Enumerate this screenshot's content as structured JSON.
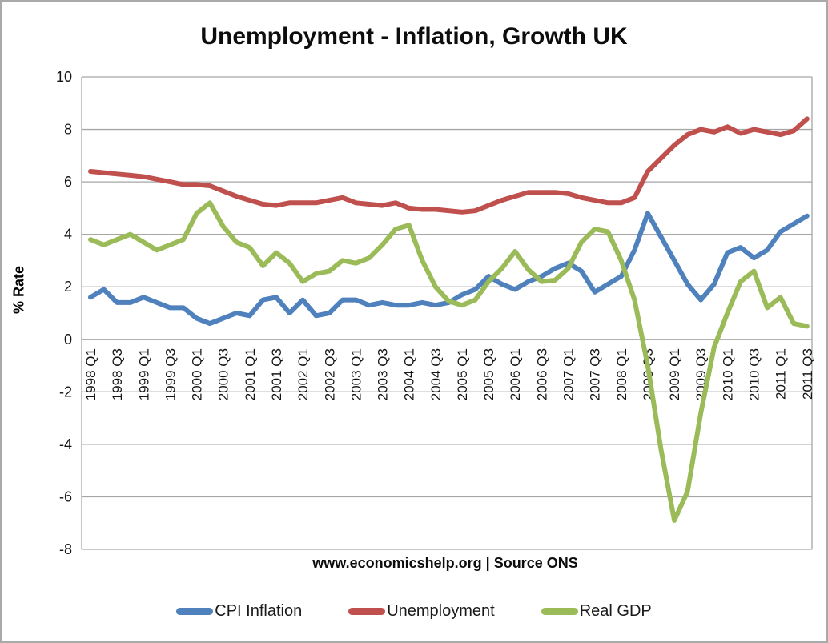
{
  "title": "Unemployment - Inflation, Growth UK",
  "source_text": "www.economicshelp.org | Source ONS",
  "y_axis": {
    "label": "% Rate",
    "ticks": [
      10,
      8,
      6,
      4,
      2,
      0,
      -2,
      -4,
      -6,
      -8
    ]
  },
  "x_axis": {
    "visible_labels": [
      "1998 Q1",
      "1998 Q3",
      "1999 Q1",
      "1999 Q3",
      "2000 Q1",
      "2000 Q3",
      "2001 Q1",
      "2001 Q3",
      "2002 Q1",
      "2002 Q3",
      "2003 Q1",
      "2003 Q3",
      "2004 Q1",
      "2004 Q3",
      "2005 Q1",
      "2005 Q3",
      "2006 Q1",
      "2006 Q3",
      "2007 Q1",
      "2007 Q3",
      "2008 Q1",
      "2008 Q3",
      "2009 Q1",
      "2009 Q3",
      "2010 Q1",
      "2010 Q3",
      "2011 Q1",
      "2011 Q3"
    ]
  },
  "legend": [
    {
      "label": "CPI Inflation",
      "color": "#4F81BD"
    },
    {
      "label": "Unemployment",
      "color": "#C0504D"
    },
    {
      "label": "Real GDP",
      "color": "#9BBB59"
    }
  ],
  "colors": {
    "gridline": "#a6a6a6",
    "text": "#151515",
    "background": "#ffffff",
    "border": "#a9a9a9"
  },
  "chart_data": {
    "type": "line",
    "title": "Unemployment - Inflation, Growth UK",
    "ylabel": "% Rate",
    "ylim": [
      -8,
      10
    ],
    "y_tick_step": 2,
    "grid": true,
    "legend_position": "bottom",
    "x": [
      "1998 Q1",
      "1998 Q2",
      "1998 Q3",
      "1998 Q4",
      "1999 Q1",
      "1999 Q2",
      "1999 Q3",
      "1999 Q4",
      "2000 Q1",
      "2000 Q2",
      "2000 Q3",
      "2000 Q4",
      "2001 Q1",
      "2001 Q2",
      "2001 Q3",
      "2001 Q4",
      "2002 Q1",
      "2002 Q2",
      "2002 Q3",
      "2002 Q4",
      "2003 Q1",
      "2003 Q2",
      "2003 Q3",
      "2003 Q4",
      "2004 Q1",
      "2004 Q2",
      "2004 Q3",
      "2004 Q4",
      "2005 Q1",
      "2005 Q2",
      "2005 Q3",
      "2005 Q4",
      "2006 Q1",
      "2006 Q2",
      "2006 Q3",
      "2006 Q4",
      "2007 Q1",
      "2007 Q2",
      "2007 Q3",
      "2007 Q4",
      "2008 Q1",
      "2008 Q2",
      "2008 Q3",
      "2008 Q4",
      "2009 Q1",
      "2009 Q2",
      "2009 Q3",
      "2009 Q4",
      "2010 Q1",
      "2010 Q2",
      "2010 Q3",
      "2010 Q4",
      "2011 Q1",
      "2011 Q2",
      "2011 Q3"
    ],
    "series": [
      {
        "name": "CPI Inflation",
        "color": "#4F81BD",
        "values": [
          1.6,
          1.9,
          1.4,
          1.4,
          1.6,
          1.4,
          1.2,
          1.2,
          0.8,
          0.6,
          0.8,
          1.0,
          0.9,
          1.5,
          1.6,
          1.0,
          1.5,
          0.9,
          1.0,
          1.5,
          1.5,
          1.3,
          1.4,
          1.3,
          1.3,
          1.4,
          1.3,
          1.4,
          1.7,
          1.9,
          2.4,
          2.1,
          1.9,
          2.2,
          2.4,
          2.7,
          2.9,
          2.6,
          1.8,
          2.1,
          2.4,
          3.4,
          4.8,
          3.9,
          3.0,
          2.1,
          1.5,
          2.1,
          3.3,
          3.5,
          3.1,
          3.4,
          4.1,
          4.4,
          4.7
        ]
      },
      {
        "name": "Unemployment",
        "color": "#C0504D",
        "values": [
          6.4,
          6.35,
          6.3,
          6.25,
          6.2,
          6.1,
          6.0,
          5.9,
          5.9,
          5.85,
          5.65,
          5.45,
          5.3,
          5.15,
          5.1,
          5.2,
          5.2,
          5.2,
          5.3,
          5.4,
          5.2,
          5.15,
          5.1,
          5.2,
          5.0,
          4.95,
          4.95,
          4.9,
          4.85,
          4.9,
          5.1,
          5.3,
          5.45,
          5.6,
          5.6,
          5.6,
          5.55,
          5.4,
          5.3,
          5.2,
          5.2,
          5.4,
          6.4,
          6.9,
          7.4,
          7.8,
          8.0,
          7.9,
          8.1,
          7.85,
          8.0,
          7.9,
          7.8,
          7.95,
          8.4
        ]
      },
      {
        "name": "Real GDP",
        "color": "#9BBB59",
        "values": [
          3.8,
          3.6,
          3.8,
          4.0,
          3.7,
          3.4,
          3.6,
          3.8,
          4.8,
          5.2,
          4.3,
          3.7,
          3.5,
          2.8,
          3.3,
          2.9,
          2.2,
          2.5,
          2.6,
          3.0,
          2.9,
          3.1,
          3.6,
          4.2,
          4.35,
          3.0,
          2.0,
          1.45,
          1.3,
          1.5,
          2.2,
          2.7,
          3.35,
          2.65,
          2.2,
          2.25,
          2.7,
          3.7,
          4.2,
          4.1,
          3.0,
          1.5,
          -1.0,
          -4.2,
          -6.9,
          -5.8,
          -2.8,
          -0.3,
          1.0,
          2.2,
          2.6,
          1.2,
          1.6,
          0.6,
          0.5
        ]
      }
    ]
  }
}
